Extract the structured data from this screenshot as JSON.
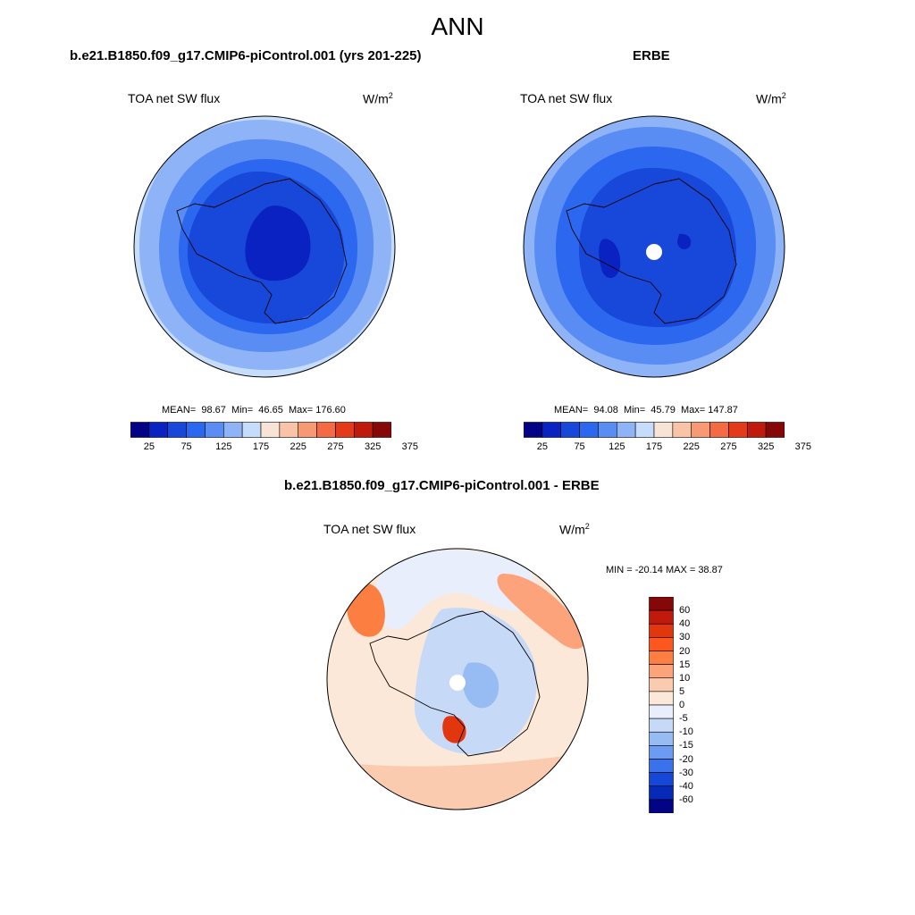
{
  "main_title": "ANN",
  "colors": {
    "seq": [
      "#030385",
      "#0a22c2",
      "#1748d9",
      "#2c68ef",
      "#5a8df4",
      "#8fb3f7",
      "#c6dcfb",
      "#f7e4d6",
      "#f9c3a8",
      "#f79a74",
      "#f46b43",
      "#e33a1a",
      "#c01a0c",
      "#860707"
    ],
    "diff": [
      "#860707",
      "#bf1a0b",
      "#e2360f",
      "#fb571f",
      "#fc7e40",
      "#fca37b",
      "#fbcbb0",
      "#fce8d8",
      "#e8eefb",
      "#c6d9f7",
      "#97bbf3",
      "#6b9bf2",
      "#3c71ec",
      "#1548d9",
      "#0629b7",
      "#030385"
    ]
  },
  "panels": [
    {
      "title": "b.e21.B1850.f09_g17.CMIP6-piControl.001 (yrs 201-225)",
      "variable": "TOA net SW flux",
      "units": "W/m",
      "units_sup": "2",
      "mean_label": "MEAN=",
      "mean": "98.67",
      "min_label": "Min=",
      "min": "46.65",
      "max_label": "Max=",
      "max": "176.60",
      "pole_hole": false
    },
    {
      "title": "ERBE",
      "variable": "TOA net SW flux",
      "units": "W/m",
      "units_sup": "2",
      "mean_label": "MEAN=",
      "mean": "94.08",
      "min_label": "Min=",
      "min": "45.79",
      "max_label": "Max=",
      "max": "147.87",
      "pole_hole": true
    }
  ],
  "seq_ticks": [
    "25",
    "75",
    "125",
    "175",
    "225",
    "275",
    "325",
    "375"
  ],
  "diff_panel": {
    "title": "b.e21.B1850.f09_g17.CMIP6-piControl.001 - ERBE",
    "variable": "TOA net SW flux",
    "units": "W/m",
    "units_sup": "2",
    "minmax": "MIN = -20.14 MAX =  38.87",
    "ticks": [
      "60",
      "40",
      "30",
      "20",
      "15",
      "10",
      "5",
      "0",
      "-5",
      "-10",
      "-15",
      "-20",
      "-30",
      "-40",
      "-60"
    ]
  }
}
